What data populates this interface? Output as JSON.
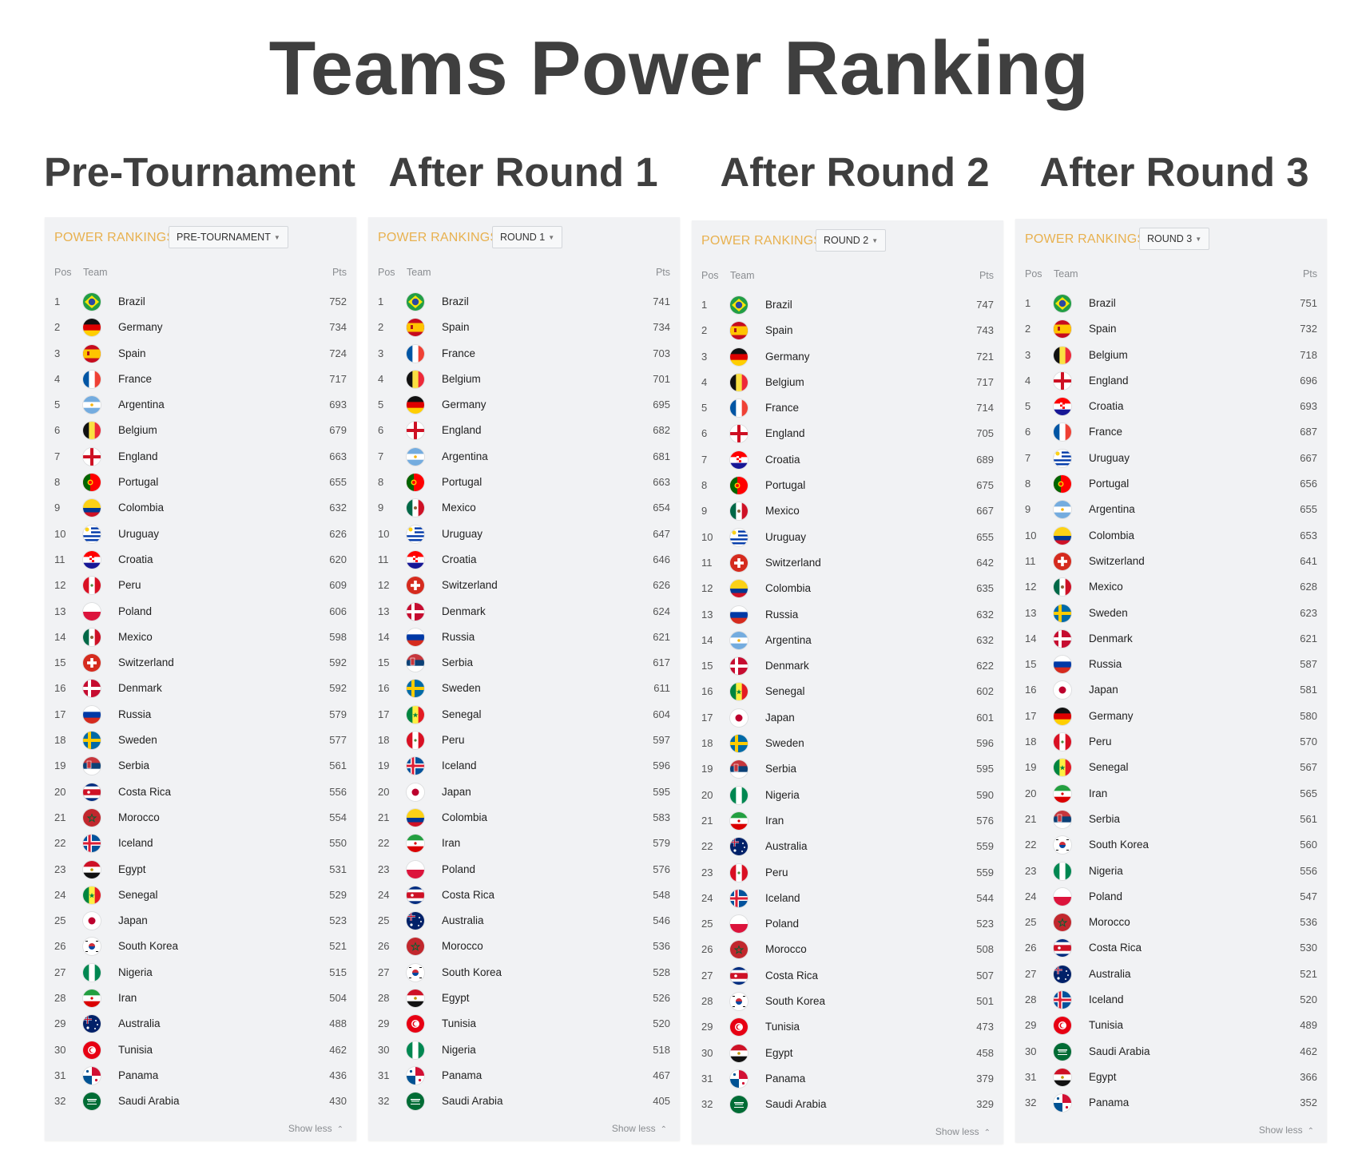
{
  "title": "Teams Power Ranking",
  "panel_title": "POWER RANKINGS",
  "col_pos": "Pos",
  "col_team": "Team",
  "col_pts": "Pts",
  "show_less": "Show less",
  "columns": [
    {
      "heading": "Pre-Tournament",
      "select": "PRE-TOURNAMENT",
      "rows": [
        {
          "pos": "1",
          "team": "Brazil",
          "pts": "752"
        },
        {
          "pos": "2",
          "team": "Germany",
          "pts": "734"
        },
        {
          "pos": "3",
          "team": "Spain",
          "pts": "724"
        },
        {
          "pos": "4",
          "team": "France",
          "pts": "717"
        },
        {
          "pos": "5",
          "team": "Argentina",
          "pts": "693"
        },
        {
          "pos": "6",
          "team": "Belgium",
          "pts": "679"
        },
        {
          "pos": "7",
          "team": "England",
          "pts": "663"
        },
        {
          "pos": "8",
          "team": "Portugal",
          "pts": "655"
        },
        {
          "pos": "9",
          "team": "Colombia",
          "pts": "632"
        },
        {
          "pos": "10",
          "team": "Uruguay",
          "pts": "626"
        },
        {
          "pos": "11",
          "team": "Croatia",
          "pts": "620"
        },
        {
          "pos": "12",
          "team": "Peru",
          "pts": "609"
        },
        {
          "pos": "13",
          "team": "Poland",
          "pts": "606"
        },
        {
          "pos": "14",
          "team": "Mexico",
          "pts": "598"
        },
        {
          "pos": "15",
          "team": "Switzerland",
          "pts": "592"
        },
        {
          "pos": "16",
          "team": "Denmark",
          "pts": "592"
        },
        {
          "pos": "17",
          "team": "Russia",
          "pts": "579"
        },
        {
          "pos": "18",
          "team": "Sweden",
          "pts": "577"
        },
        {
          "pos": "19",
          "team": "Serbia",
          "pts": "561"
        },
        {
          "pos": "20",
          "team": "Costa Rica",
          "pts": "556"
        },
        {
          "pos": "21",
          "team": "Morocco",
          "pts": "554"
        },
        {
          "pos": "22",
          "team": "Iceland",
          "pts": "550"
        },
        {
          "pos": "23",
          "team": "Egypt",
          "pts": "531"
        },
        {
          "pos": "24",
          "team": "Senegal",
          "pts": "529"
        },
        {
          "pos": "25",
          "team": "Japan",
          "pts": "523"
        },
        {
          "pos": "26",
          "team": "South Korea",
          "pts": "521"
        },
        {
          "pos": "27",
          "team": "Nigeria",
          "pts": "515"
        },
        {
          "pos": "28",
          "team": "Iran",
          "pts": "504"
        },
        {
          "pos": "29",
          "team": "Australia",
          "pts": "488"
        },
        {
          "pos": "30",
          "team": "Tunisia",
          "pts": "462"
        },
        {
          "pos": "31",
          "team": "Panama",
          "pts": "436"
        },
        {
          "pos": "32",
          "team": "Saudi Arabia",
          "pts": "430"
        }
      ]
    },
    {
      "heading": "After Round 1",
      "select": "ROUND 1",
      "rows": [
        {
          "pos": "1",
          "team": "Brazil",
          "pts": "741"
        },
        {
          "pos": "2",
          "team": "Spain",
          "pts": "734"
        },
        {
          "pos": "3",
          "team": "France",
          "pts": "703"
        },
        {
          "pos": "4",
          "team": "Belgium",
          "pts": "701"
        },
        {
          "pos": "5",
          "team": "Germany",
          "pts": "695"
        },
        {
          "pos": "6",
          "team": "England",
          "pts": "682"
        },
        {
          "pos": "7",
          "team": "Argentina",
          "pts": "681"
        },
        {
          "pos": "8",
          "team": "Portugal",
          "pts": "663"
        },
        {
          "pos": "9",
          "team": "Mexico",
          "pts": "654"
        },
        {
          "pos": "10",
          "team": "Uruguay",
          "pts": "647"
        },
        {
          "pos": "11",
          "team": "Croatia",
          "pts": "646"
        },
        {
          "pos": "12",
          "team": "Switzerland",
          "pts": "626"
        },
        {
          "pos": "13",
          "team": "Denmark",
          "pts": "624"
        },
        {
          "pos": "14",
          "team": "Russia",
          "pts": "621"
        },
        {
          "pos": "15",
          "team": "Serbia",
          "pts": "617"
        },
        {
          "pos": "16",
          "team": "Sweden",
          "pts": "611"
        },
        {
          "pos": "17",
          "team": "Senegal",
          "pts": "604"
        },
        {
          "pos": "18",
          "team": "Peru",
          "pts": "597"
        },
        {
          "pos": "19",
          "team": "Iceland",
          "pts": "596"
        },
        {
          "pos": "20",
          "team": "Japan",
          "pts": "595"
        },
        {
          "pos": "21",
          "team": "Colombia",
          "pts": "583"
        },
        {
          "pos": "22",
          "team": "Iran",
          "pts": "579"
        },
        {
          "pos": "23",
          "team": "Poland",
          "pts": "576"
        },
        {
          "pos": "24",
          "team": "Costa Rica",
          "pts": "548"
        },
        {
          "pos": "25",
          "team": "Australia",
          "pts": "546"
        },
        {
          "pos": "26",
          "team": "Morocco",
          "pts": "536"
        },
        {
          "pos": "27",
          "team": "South Korea",
          "pts": "528"
        },
        {
          "pos": "28",
          "team": "Egypt",
          "pts": "526"
        },
        {
          "pos": "29",
          "team": "Tunisia",
          "pts": "520"
        },
        {
          "pos": "30",
          "team": "Nigeria",
          "pts": "518"
        },
        {
          "pos": "31",
          "team": "Panama",
          "pts": "467"
        },
        {
          "pos": "32",
          "team": "Saudi Arabia",
          "pts": "405"
        }
      ]
    },
    {
      "heading": "After Round 2",
      "select": "ROUND 2",
      "rows": [
        {
          "pos": "1",
          "team": "Brazil",
          "pts": "747"
        },
        {
          "pos": "2",
          "team": "Spain",
          "pts": "743"
        },
        {
          "pos": "3",
          "team": "Germany",
          "pts": "721"
        },
        {
          "pos": "4",
          "team": "Belgium",
          "pts": "717"
        },
        {
          "pos": "5",
          "team": "France",
          "pts": "714"
        },
        {
          "pos": "6",
          "team": "England",
          "pts": "705"
        },
        {
          "pos": "7",
          "team": "Croatia",
          "pts": "689"
        },
        {
          "pos": "8",
          "team": "Portugal",
          "pts": "675"
        },
        {
          "pos": "9",
          "team": "Mexico",
          "pts": "667"
        },
        {
          "pos": "10",
          "team": "Uruguay",
          "pts": "655"
        },
        {
          "pos": "11",
          "team": "Switzerland",
          "pts": "642"
        },
        {
          "pos": "12",
          "team": "Colombia",
          "pts": "635"
        },
        {
          "pos": "13",
          "team": "Russia",
          "pts": "632"
        },
        {
          "pos": "14",
          "team": "Argentina",
          "pts": "632"
        },
        {
          "pos": "15",
          "team": "Denmark",
          "pts": "622"
        },
        {
          "pos": "16",
          "team": "Senegal",
          "pts": "602"
        },
        {
          "pos": "17",
          "team": "Japan",
          "pts": "601"
        },
        {
          "pos": "18",
          "team": "Sweden",
          "pts": "596"
        },
        {
          "pos": "19",
          "team": "Serbia",
          "pts": "595"
        },
        {
          "pos": "20",
          "team": "Nigeria",
          "pts": "590"
        },
        {
          "pos": "21",
          "team": "Iran",
          "pts": "576"
        },
        {
          "pos": "22",
          "team": "Australia",
          "pts": "559"
        },
        {
          "pos": "23",
          "team": "Peru",
          "pts": "559"
        },
        {
          "pos": "24",
          "team": "Iceland",
          "pts": "544"
        },
        {
          "pos": "25",
          "team": "Poland",
          "pts": "523"
        },
        {
          "pos": "26",
          "team": "Morocco",
          "pts": "508"
        },
        {
          "pos": "27",
          "team": "Costa Rica",
          "pts": "507"
        },
        {
          "pos": "28",
          "team": "South Korea",
          "pts": "501"
        },
        {
          "pos": "29",
          "team": "Tunisia",
          "pts": "473"
        },
        {
          "pos": "30",
          "team": "Egypt",
          "pts": "458"
        },
        {
          "pos": "31",
          "team": "Panama",
          "pts": "379"
        },
        {
          "pos": "32",
          "team": "Saudi Arabia",
          "pts": "329"
        }
      ]
    },
    {
      "heading": "After Round 3",
      "select": "ROUND 3",
      "rows": [
        {
          "pos": "1",
          "team": "Brazil",
          "pts": "751"
        },
        {
          "pos": "2",
          "team": "Spain",
          "pts": "732"
        },
        {
          "pos": "3",
          "team": "Belgium",
          "pts": "718"
        },
        {
          "pos": "4",
          "team": "England",
          "pts": "696"
        },
        {
          "pos": "5",
          "team": "Croatia",
          "pts": "693"
        },
        {
          "pos": "6",
          "team": "France",
          "pts": "687"
        },
        {
          "pos": "7",
          "team": "Uruguay",
          "pts": "667"
        },
        {
          "pos": "8",
          "team": "Portugal",
          "pts": "656"
        },
        {
          "pos": "9",
          "team": "Argentina",
          "pts": "655"
        },
        {
          "pos": "10",
          "team": "Colombia",
          "pts": "653"
        },
        {
          "pos": "11",
          "team": "Switzerland",
          "pts": "641"
        },
        {
          "pos": "12",
          "team": "Mexico",
          "pts": "628"
        },
        {
          "pos": "13",
          "team": "Sweden",
          "pts": "623"
        },
        {
          "pos": "14",
          "team": "Denmark",
          "pts": "621"
        },
        {
          "pos": "15",
          "team": "Russia",
          "pts": "587"
        },
        {
          "pos": "16",
          "team": "Japan",
          "pts": "581"
        },
        {
          "pos": "17",
          "team": "Germany",
          "pts": "580"
        },
        {
          "pos": "18",
          "team": "Peru",
          "pts": "570"
        },
        {
          "pos": "19",
          "team": "Senegal",
          "pts": "567"
        },
        {
          "pos": "20",
          "team": "Iran",
          "pts": "565"
        },
        {
          "pos": "21",
          "team": "Serbia",
          "pts": "561"
        },
        {
          "pos": "22",
          "team": "South Korea",
          "pts": "560"
        },
        {
          "pos": "23",
          "team": "Nigeria",
          "pts": "556"
        },
        {
          "pos": "24",
          "team": "Poland",
          "pts": "547"
        },
        {
          "pos": "25",
          "team": "Morocco",
          "pts": "536"
        },
        {
          "pos": "26",
          "team": "Costa Rica",
          "pts": "530"
        },
        {
          "pos": "27",
          "team": "Australia",
          "pts": "521"
        },
        {
          "pos": "28",
          "team": "Iceland",
          "pts": "520"
        },
        {
          "pos": "29",
          "team": "Tunisia",
          "pts": "489"
        },
        {
          "pos": "30",
          "team": "Saudi Arabia",
          "pts": "462"
        },
        {
          "pos": "31",
          "team": "Egypt",
          "pts": "366"
        },
        {
          "pos": "32",
          "team": "Panama",
          "pts": "352"
        }
      ]
    }
  ]
}
